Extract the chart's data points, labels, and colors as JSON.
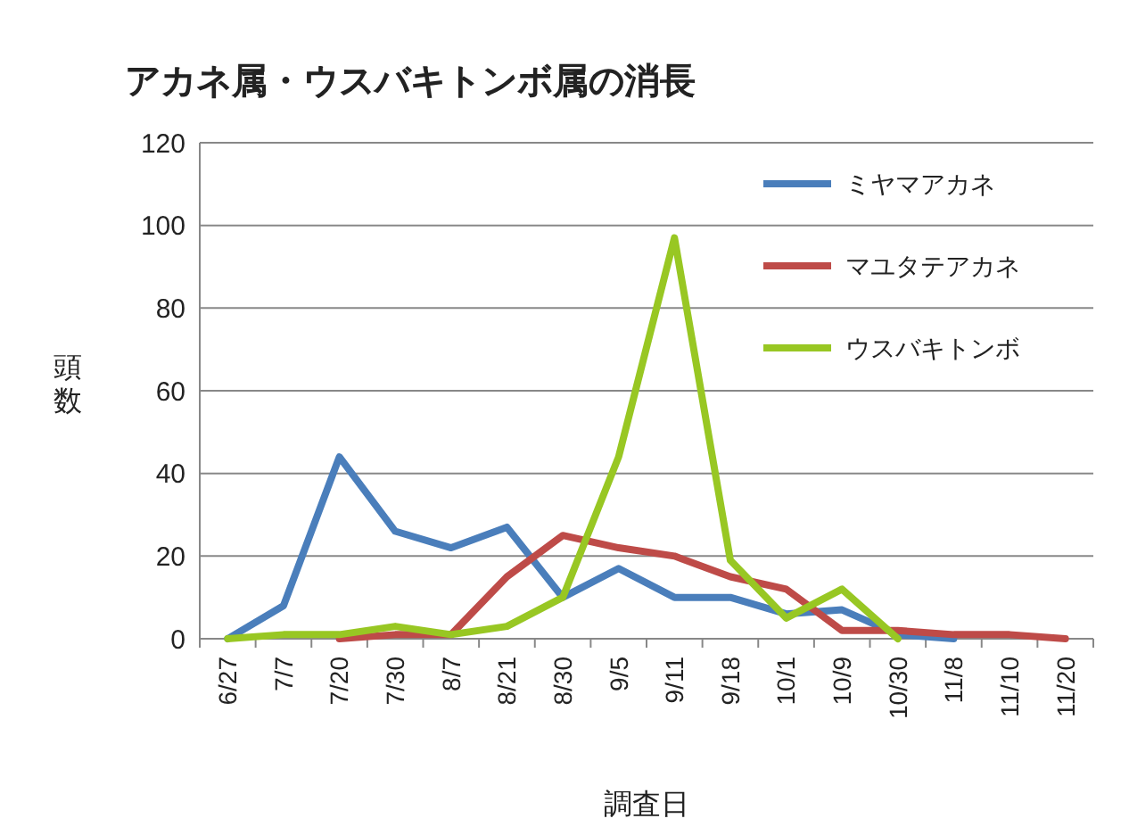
{
  "chart_data": {
    "type": "line",
    "title": "アカネ属・ウスバキトンボ属の消長",
    "xlabel": "調査日",
    "ylabel": "頭数",
    "categories": [
      "6/27",
      "7/7",
      "7/20",
      "7/30",
      "8/7",
      "8/21",
      "8/30",
      "9/5",
      "9/11",
      "9/18",
      "10/1",
      "10/9",
      "10/30",
      "11/8",
      "11/10",
      "11/20"
    ],
    "series": [
      {
        "name": "ミヤマアカネ",
        "color": "#4a7ebb",
        "values": [
          0,
          8,
          44,
          26,
          22,
          27,
          10,
          17,
          10,
          10,
          6,
          7,
          1,
          0,
          null,
          null
        ]
      },
      {
        "name": "マユタテアカネ",
        "color": "#be4b48",
        "values": [
          null,
          null,
          0,
          1,
          1,
          15,
          25,
          22,
          20,
          15,
          12,
          2,
          2,
          1,
          1,
          0
        ]
      },
      {
        "name": "ウスバキトンボ",
        "color": "#98c723",
        "values": [
          0,
          1,
          1,
          3,
          1,
          3,
          10,
          44,
          97,
          19,
          5,
          12,
          0,
          null,
          null,
          null
        ]
      }
    ],
    "ylim": [
      0,
      120
    ],
    "yticks": [
      0,
      20,
      40,
      60,
      80,
      100,
      120
    ],
    "grid": "y",
    "legend": "top right",
    "marker": "none",
    "line_style": "solid"
  }
}
